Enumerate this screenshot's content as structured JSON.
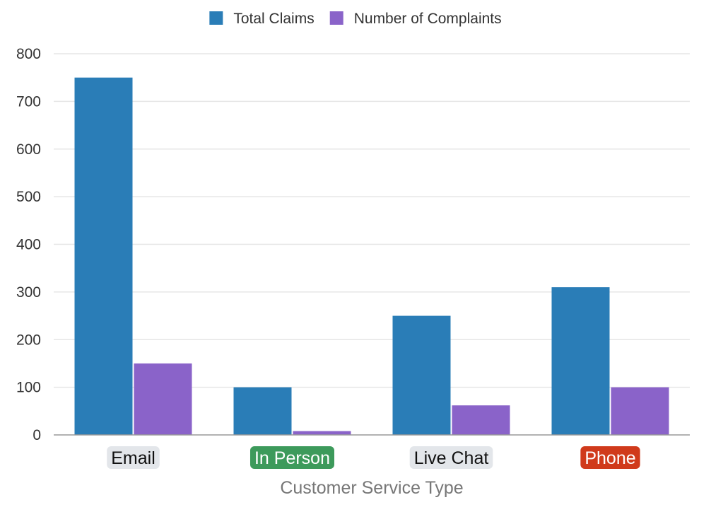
{
  "chart_data": {
    "type": "bar",
    "title": "",
    "xlabel": "Customer Service Type",
    "ylabel": "",
    "categories": [
      "Email",
      "In Person",
      "Live Chat",
      "Phone"
    ],
    "category_badges": [
      {
        "bg": "#e3e6ea",
        "fg": "#111111"
      },
      {
        "bg": "#3d9a5b",
        "fg": "#ffffff"
      },
      {
        "bg": "#e3e6ea",
        "fg": "#111111"
      },
      {
        "bg": "#d03a1b",
        "fg": "#ffffff"
      }
    ],
    "series": [
      {
        "name": "Total Claims",
        "color": "#2a7db7",
        "values": [
          750,
          100,
          250,
          310
        ]
      },
      {
        "name": "Number of Complaints",
        "color": "#8a63c9",
        "values": [
          150,
          8,
          62,
          100
        ]
      }
    ],
    "ylim": [
      0,
      800
    ],
    "yticks": [
      0,
      100,
      200,
      300,
      400,
      500,
      600,
      700,
      800
    ],
    "grid": true,
    "legend_position": "top-center"
  }
}
